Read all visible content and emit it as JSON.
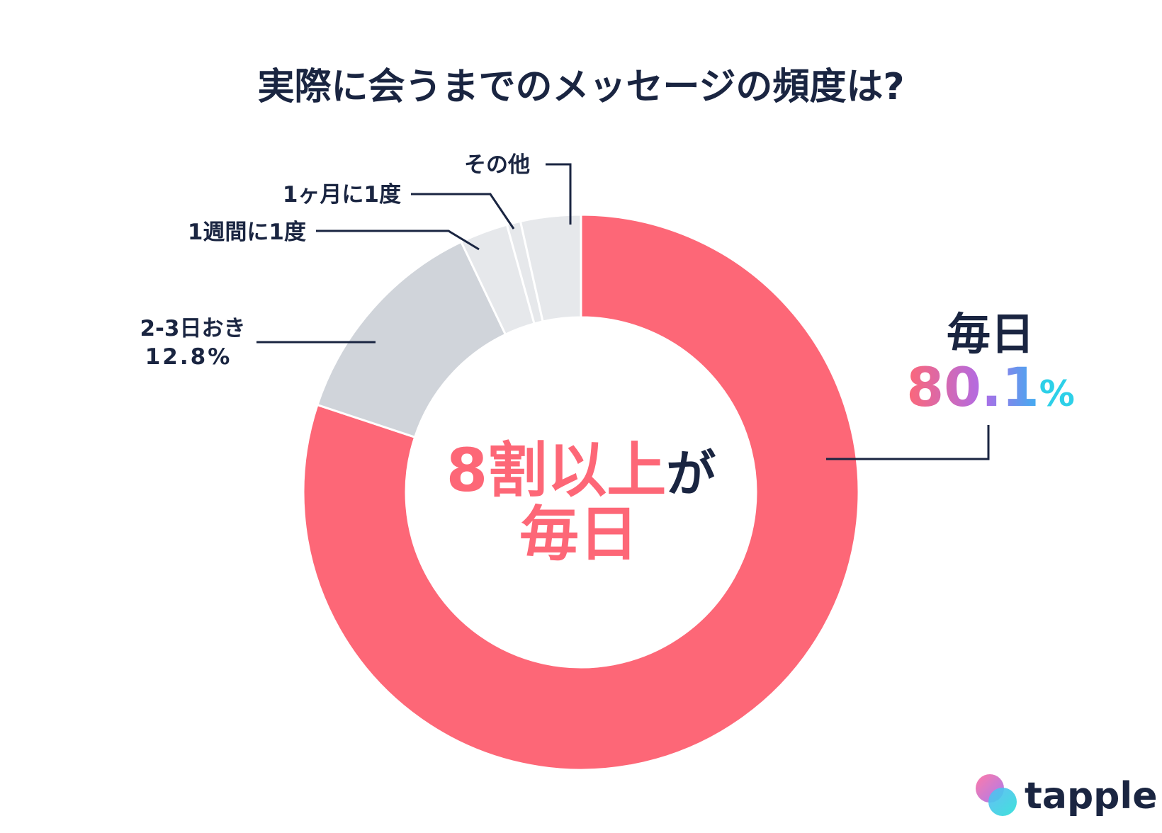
{
  "chart_data": {
    "type": "pie",
    "donut": true,
    "title": "実際に会うまでのメッセージの頻度は?",
    "slices": [
      {
        "label": "毎日",
        "value": 80.1,
        "value_text": "80.1",
        "unit": "%",
        "color": "#fd6777"
      },
      {
        "label": "2-3日おき",
        "value": 12.8,
        "value_text": "12.8%",
        "color": "#d0d4da"
      },
      {
        "label": "1週間に1度",
        "value": 2.8,
        "color": "#e6e8eb"
      },
      {
        "label": "1ヶ月に1度",
        "value": 0.8,
        "color": "#e6e8eb"
      },
      {
        "label": "その他",
        "value": 3.5,
        "color": "#e6e8eb"
      }
    ],
    "center_text": {
      "line1_highlight": "8割以上",
      "line1_tail": "が",
      "line2": "毎日"
    }
  },
  "brand": {
    "name": "tapple"
  },
  "colors": {
    "text": "#1a2541",
    "accent": "#fd6777",
    "gradient": [
      "#fd6777",
      "#a96ee8",
      "#4aa7f0",
      "#2dd0e8"
    ]
  }
}
